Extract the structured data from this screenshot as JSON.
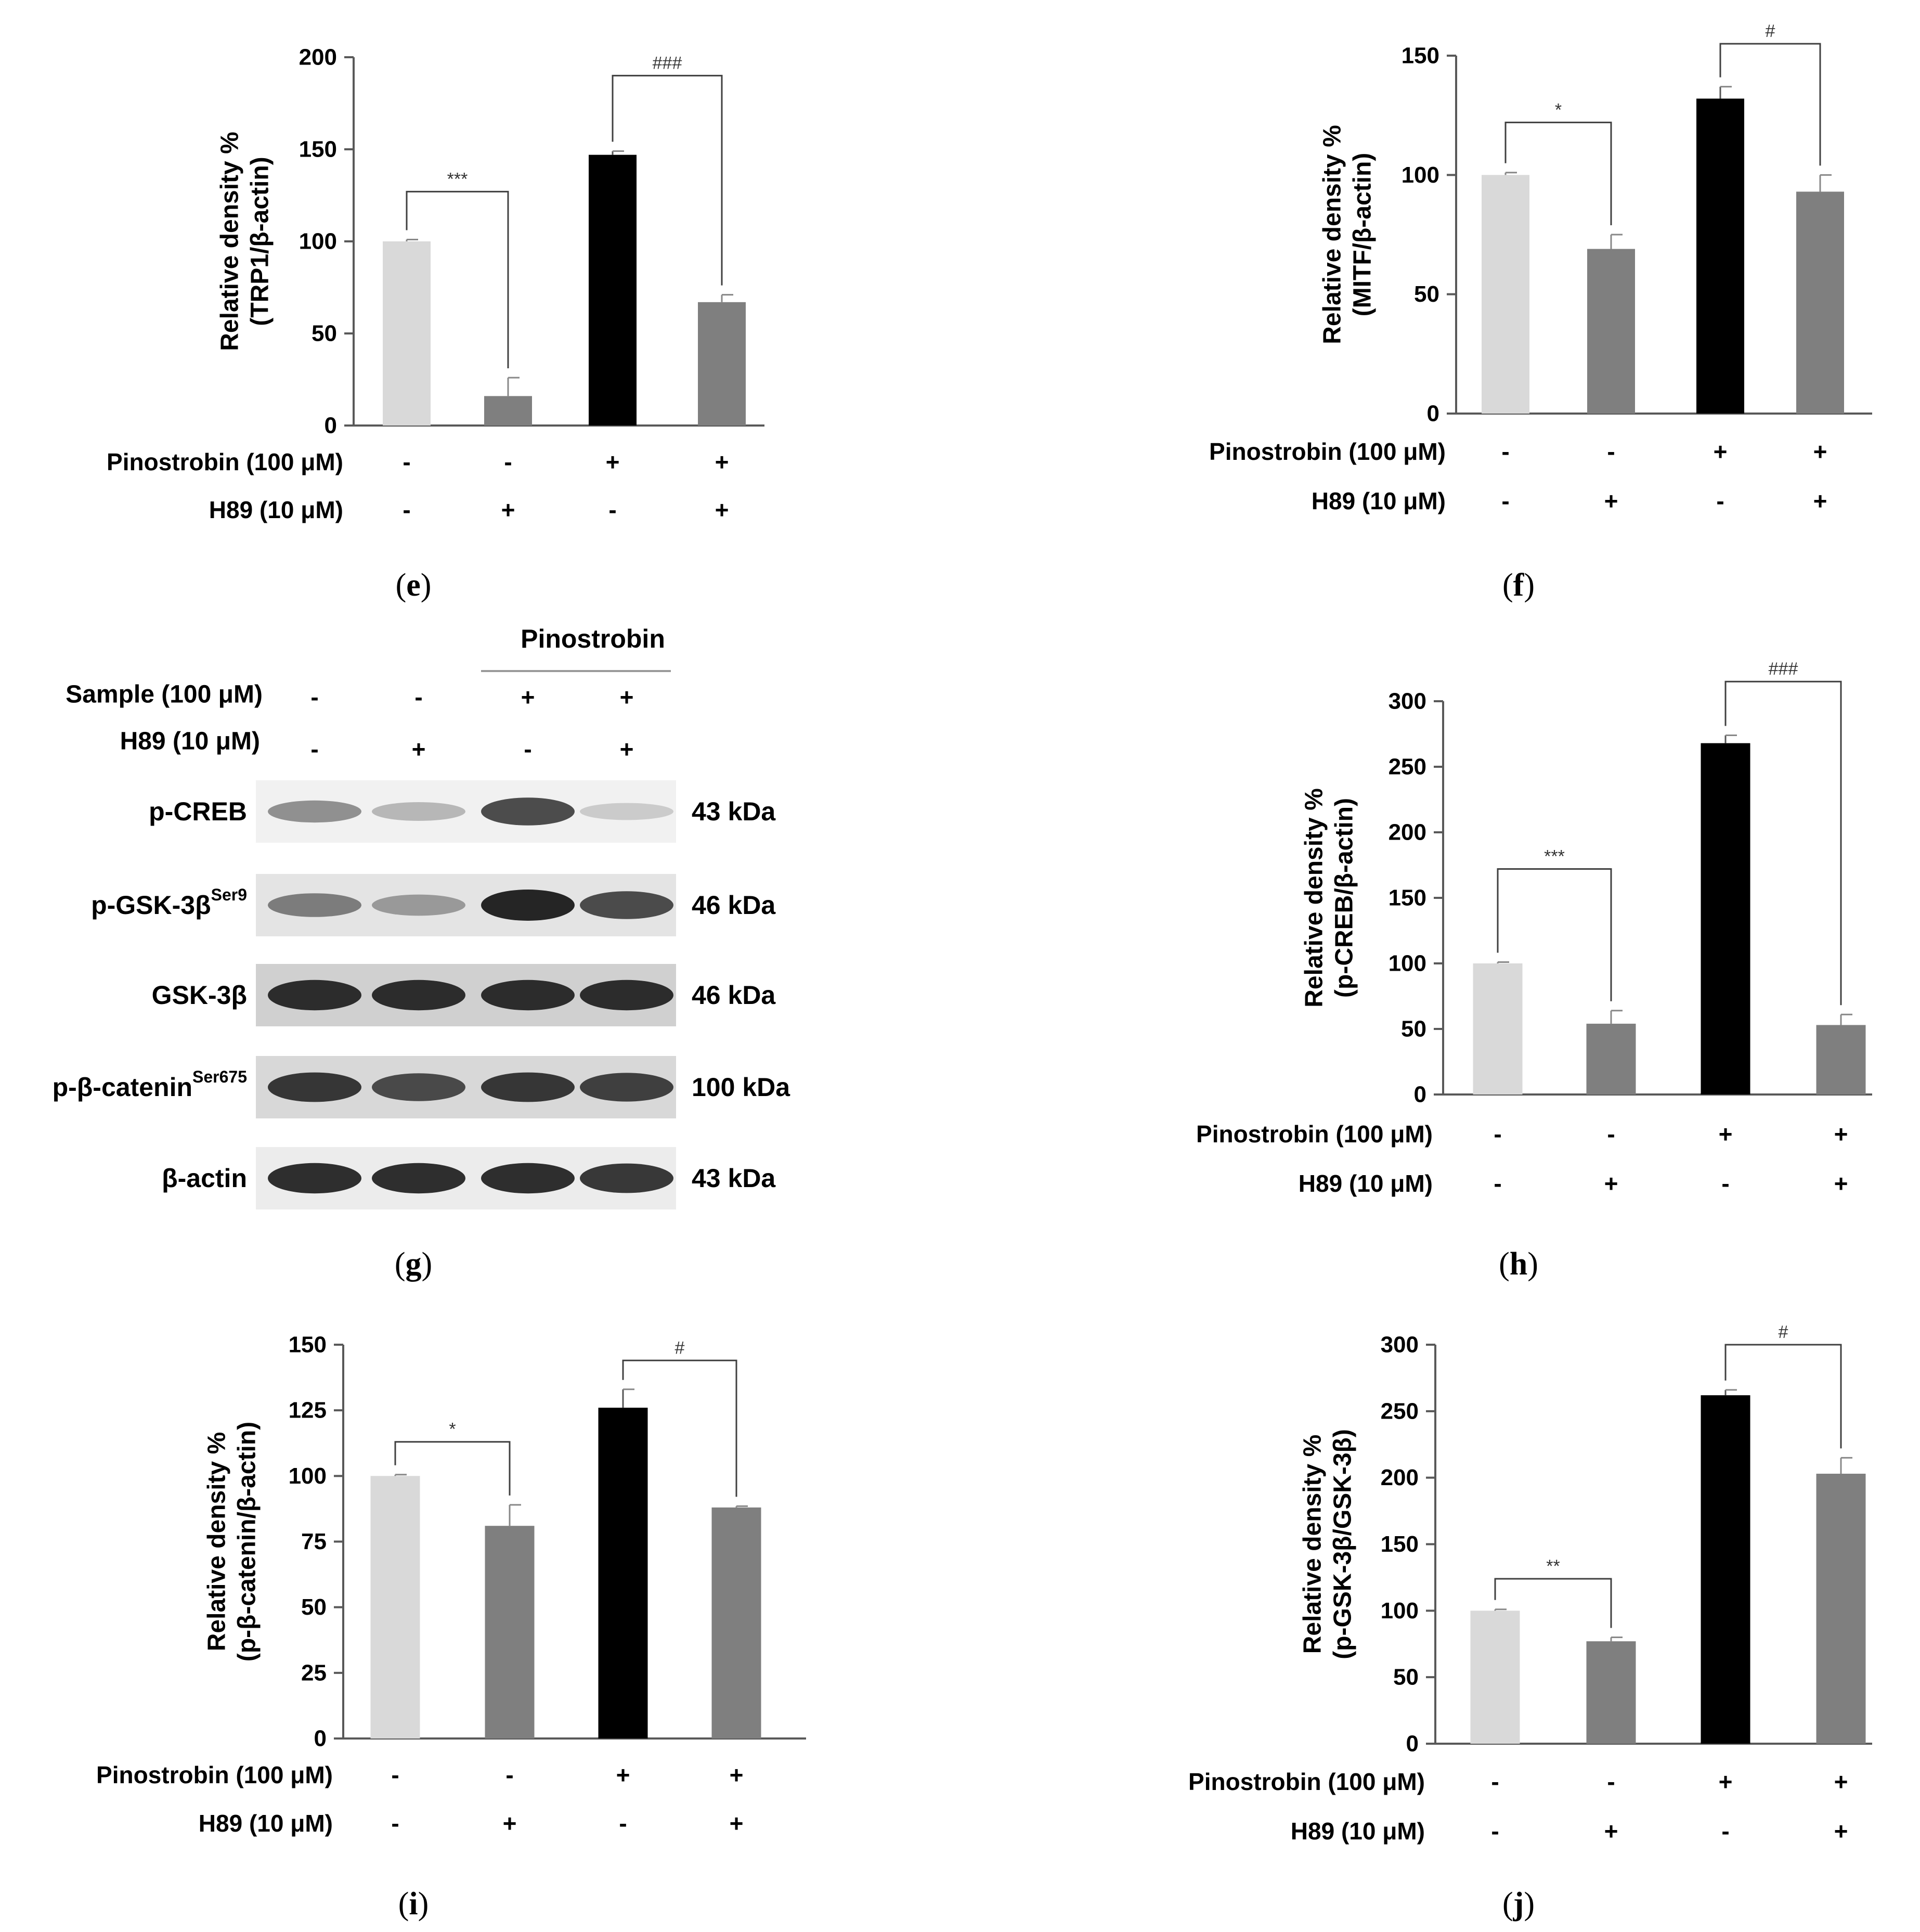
{
  "colors": {
    "control": "#d9d9d9",
    "h89": "#7f7f7f",
    "pinostrobin": "#000000",
    "axis": "#595959",
    "bracket": "#404040"
  },
  "chart_data": [
    {
      "panel": "e",
      "caption_letter": "e",
      "type": "bar",
      "ylabel_line1": "Relative density %",
      "ylabel_line2": "(TRP1/β-actin)",
      "ylim": [
        0,
        200
      ],
      "yticks": [
        0,
        50,
        100,
        150,
        200
      ],
      "yticklabels": [
        "0",
        "50",
        "100",
        "150",
        "200"
      ],
      "row1_label": "Pinostrobin (100 μM)",
      "row2_label": "H89 (10 μM)",
      "row1_signs": [
        "-",
        "-",
        "+",
        "+"
      ],
      "row2_signs": [
        "-",
        "+",
        "-",
        "+"
      ],
      "values": [
        100,
        16,
        147,
        67
      ],
      "errors": [
        1,
        10,
        2,
        4
      ],
      "bar_colors": [
        "#d9d9d9",
        "#7f7f7f",
        "#000000",
        "#7f7f7f"
      ],
      "brackets": [
        {
          "from": 0,
          "to": 1,
          "label": "***",
          "y": 127
        },
        {
          "from": 2,
          "to": 3,
          "label": "###",
          "y": 190
        }
      ]
    },
    {
      "panel": "f",
      "caption_letter": "f",
      "type": "bar",
      "ylabel_line1": "Relative density %",
      "ylabel_line2": "(MITF/β-actin)",
      "ylim": [
        0,
        150
      ],
      "yticks": [
        0,
        50,
        100,
        150
      ],
      "yticklabels": [
        "0",
        "50",
        "100",
        "150"
      ],
      "row1_label": "Pinostrobin (100 μM)",
      "row2_label": "H89 (10 μM)",
      "row1_signs": [
        "-",
        "-",
        "+",
        "+"
      ],
      "row2_signs": [
        "-",
        "+",
        "-",
        "+"
      ],
      "values": [
        100,
        69,
        132,
        93
      ],
      "errors": [
        1,
        6,
        5,
        7
      ],
      "bar_colors": [
        "#d9d9d9",
        "#7f7f7f",
        "#000000",
        "#7f7f7f"
      ],
      "brackets": [
        {
          "from": 0,
          "to": 1,
          "label": "*",
          "y": 122
        },
        {
          "from": 2,
          "to": 3,
          "label": "#",
          "y": 155
        }
      ]
    },
    {
      "panel": "h",
      "caption_letter": "h",
      "type": "bar",
      "ylabel_line1": "Relative density %",
      "ylabel_line2": "(p-CREB/β-actin)",
      "ylim": [
        0,
        300
      ],
      "yticks": [
        0,
        50,
        100,
        150,
        200,
        250,
        300
      ],
      "yticklabels": [
        "0",
        "50",
        "100",
        "150",
        "200",
        "250",
        "300"
      ],
      "row1_label": "Pinostrobin (100 μM)",
      "row2_label": "H89 (10 μM)",
      "row1_signs": [
        "-",
        "-",
        "+",
        "+"
      ],
      "row2_signs": [
        "-",
        "+",
        "-",
        "+"
      ],
      "values": [
        100,
        54,
        268,
        53
      ],
      "errors": [
        1,
        10,
        6,
        8
      ],
      "bar_colors": [
        "#d9d9d9",
        "#7f7f7f",
        "#000000",
        "#7f7f7f"
      ],
      "brackets": [
        {
          "from": 0,
          "to": 1,
          "label": "***",
          "y": 172
        },
        {
          "from": 2,
          "to": 3,
          "label": "###",
          "y": 315
        }
      ]
    },
    {
      "panel": "i",
      "caption_letter": "i",
      "type": "bar",
      "ylabel_line1": "Relative density %",
      "ylabel_line2": "(p-β-catenin/β-actin)",
      "ylim": [
        0,
        150
      ],
      "yticks": [
        0,
        25,
        50,
        75,
        100,
        125,
        150
      ],
      "yticklabels": [
        "0",
        "25",
        "50",
        "75",
        "100",
        "125",
        "150"
      ],
      "row1_label": "Pinostrobin (100 μM)",
      "row2_label": "H89 (10 μM)",
      "row1_signs": [
        "-",
        "-",
        "+",
        "+"
      ],
      "row2_signs": [
        "-",
        "+",
        "-",
        "+"
      ],
      "values": [
        100,
        81,
        126,
        88
      ],
      "errors": [
        0.5,
        8,
        7,
        0.5
      ],
      "bar_colors": [
        "#d9d9d9",
        "#7f7f7f",
        "#000000",
        "#7f7f7f"
      ],
      "brackets": [
        {
          "from": 0,
          "to": 1,
          "label": "*",
          "y": 113
        },
        {
          "from": 2,
          "to": 3,
          "label": "#",
          "y": 144
        }
      ]
    },
    {
      "panel": "j",
      "caption_letter": "j",
      "type": "bar",
      "ylabel_line1": "Relative density %",
      "ylabel_line2": "(p-GSK-3β/GSK-3β)",
      "ylim": [
        0,
        300
      ],
      "yticks": [
        0,
        50,
        100,
        150,
        200,
        250,
        300
      ],
      "yticklabels": [
        "0",
        "50",
        "100",
        "150",
        "200",
        "250",
        "300"
      ],
      "row1_label": "Pinostrobin (100 μM)",
      "row2_label": "H89 (10 μM)",
      "row1_signs": [
        "-",
        "-",
        "+",
        "+"
      ],
      "row2_signs": [
        "-",
        "+",
        "-",
        "+"
      ],
      "values": [
        100,
        77,
        262,
        203
      ],
      "errors": [
        1,
        3,
        4,
        12
      ],
      "bar_colors": [
        "#d9d9d9",
        "#7f7f7f",
        "#000000",
        "#7f7f7f"
      ],
      "brackets": [
        {
          "from": 0,
          "to": 1,
          "label": "**",
          "y": 124
        },
        {
          "from": 2,
          "to": 3,
          "label": "#",
          "y": 300
        }
      ]
    }
  ],
  "blot": {
    "caption_letter": "g",
    "header_label": "Pinostrobin",
    "sample_label": "Sample (100 μM)",
    "h89_label": "H89 (10 μM)",
    "sample_signs": [
      "-",
      "-",
      "+",
      "+"
    ],
    "h89_signs": [
      "-",
      "+",
      "-",
      "+"
    ],
    "rows": [
      {
        "name": "p-CREB",
        "superscript": "",
        "kda": "43 kDa",
        "intensity": [
          0.45,
          0.25,
          0.8,
          0.15
        ],
        "background": "#f1f1f1"
      },
      {
        "name": "p-GSK-3β",
        "superscript": "Ser9",
        "kda": "46 kDa",
        "intensity": [
          0.55,
          0.4,
          1.0,
          0.8
        ],
        "background": "#e4e4e4"
      },
      {
        "name": "GSK-3β",
        "superscript": "",
        "kda": "46 kDa",
        "intensity": [
          0.95,
          0.95,
          0.95,
          0.95
        ],
        "background": "#d0d0d0"
      },
      {
        "name": "p-β-catenin",
        "superscript": "Ser675",
        "kda": "100 kDa",
        "intensity": [
          0.9,
          0.8,
          0.9,
          0.85
        ],
        "background": "#d8d8d8"
      },
      {
        "name": "β-actin",
        "superscript": "",
        "kda": "43 kDa",
        "intensity": [
          0.95,
          0.95,
          0.95,
          0.9
        ],
        "background": "#ececec"
      }
    ]
  }
}
